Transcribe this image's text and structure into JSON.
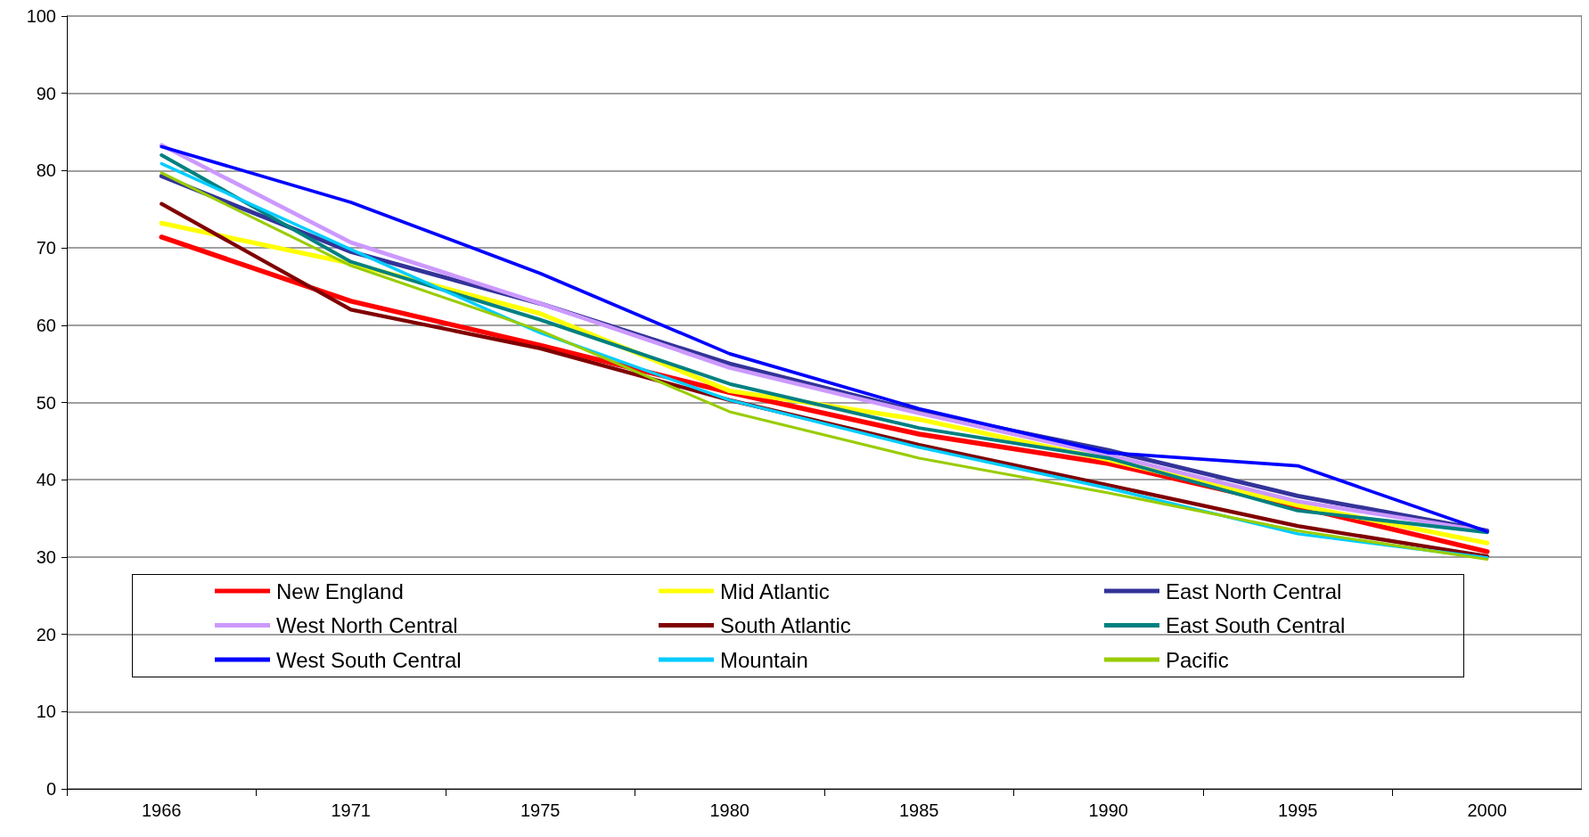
{
  "chart_data": {
    "type": "line",
    "categories": [
      "1966",
      "1971",
      "1975",
      "1980",
      "1985",
      "1990",
      "1995",
      "2000"
    ],
    "series": [
      {
        "name": "New England",
        "color": "#ff0000",
        "values": [
          71.4,
          63.1,
          57.4,
          51.3,
          45.9,
          42.1,
          36.5,
          30.7
        ]
      },
      {
        "name": "Mid Atlantic",
        "color": "#ffff00",
        "values": [
          73.2,
          68.0,
          61.5,
          51.5,
          47.8,
          42.6,
          36.7,
          31.8
        ]
      },
      {
        "name": "East North Central",
        "color": "#333399",
        "values": [
          79.3,
          69.5,
          62.8,
          55.0,
          48.8,
          43.8,
          37.9,
          33.4
        ]
      },
      {
        "name": "West North Central",
        "color": "#cc99ff",
        "values": [
          83.3,
          70.7,
          62.8,
          54.5,
          48.6,
          43.2,
          37.2,
          33.3
        ]
      },
      {
        "name": "South Atlantic",
        "color": "#800000",
        "values": [
          75.7,
          62.0,
          57.0,
          50.3,
          44.5,
          39.3,
          34.0,
          30.1
        ]
      },
      {
        "name": "East South Central",
        "color": "#008080",
        "values": [
          82.0,
          68.2,
          60.7,
          52.4,
          46.7,
          42.8,
          36.0,
          33.2
        ]
      },
      {
        "name": "West South Central",
        "color": "#0000ff",
        "values": [
          83.1,
          75.9,
          66.7,
          56.3,
          49.2,
          43.5,
          41.8,
          33.3
        ]
      },
      {
        "name": "Mountain",
        "color": "#00ccff",
        "values": [
          80.9,
          69.8,
          59.0,
          50.3,
          44.2,
          38.9,
          33.0,
          29.9
        ]
      },
      {
        "name": "Pacific",
        "color": "#99cc00",
        "values": [
          79.7,
          67.7,
          59.3,
          48.8,
          42.8,
          38.3,
          33.4,
          29.7
        ]
      }
    ],
    "ylim": [
      0,
      100
    ],
    "yticks": [
      0,
      10,
      20,
      30,
      40,
      50,
      60,
      70,
      80,
      90,
      100
    ],
    "grid": "y",
    "legend": "bottom",
    "line_style": "solid"
  }
}
